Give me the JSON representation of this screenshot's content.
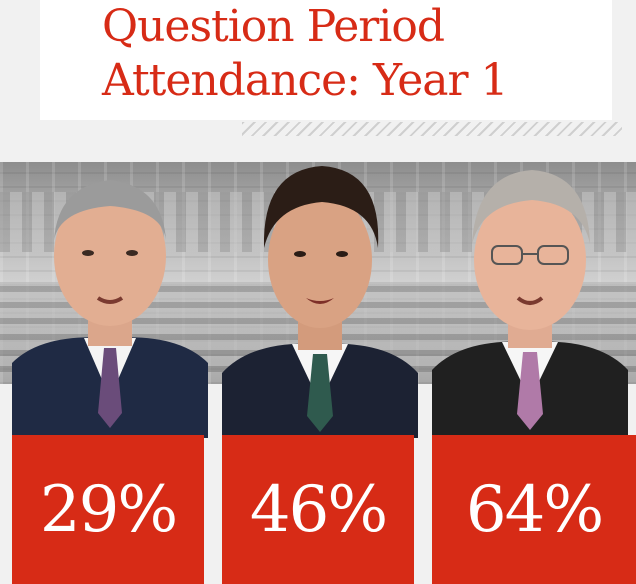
{
  "title": {
    "line1": "Question Period",
    "line2": "Attendance: Year 1"
  },
  "colors": {
    "accent": "#d72b16",
    "background": "#f1f1f1",
    "text_on_accent": "#ffffff"
  },
  "attendance": [
    {
      "value": "29%"
    },
    {
      "value": "46%"
    },
    {
      "value": "64%"
    }
  ],
  "chart_data": {
    "type": "bar",
    "title": "Question Period Attendance: Year 1",
    "categories": [
      "",
      "",
      ""
    ],
    "values": [
      29,
      46,
      64
    ],
    "unit": "%"
  }
}
